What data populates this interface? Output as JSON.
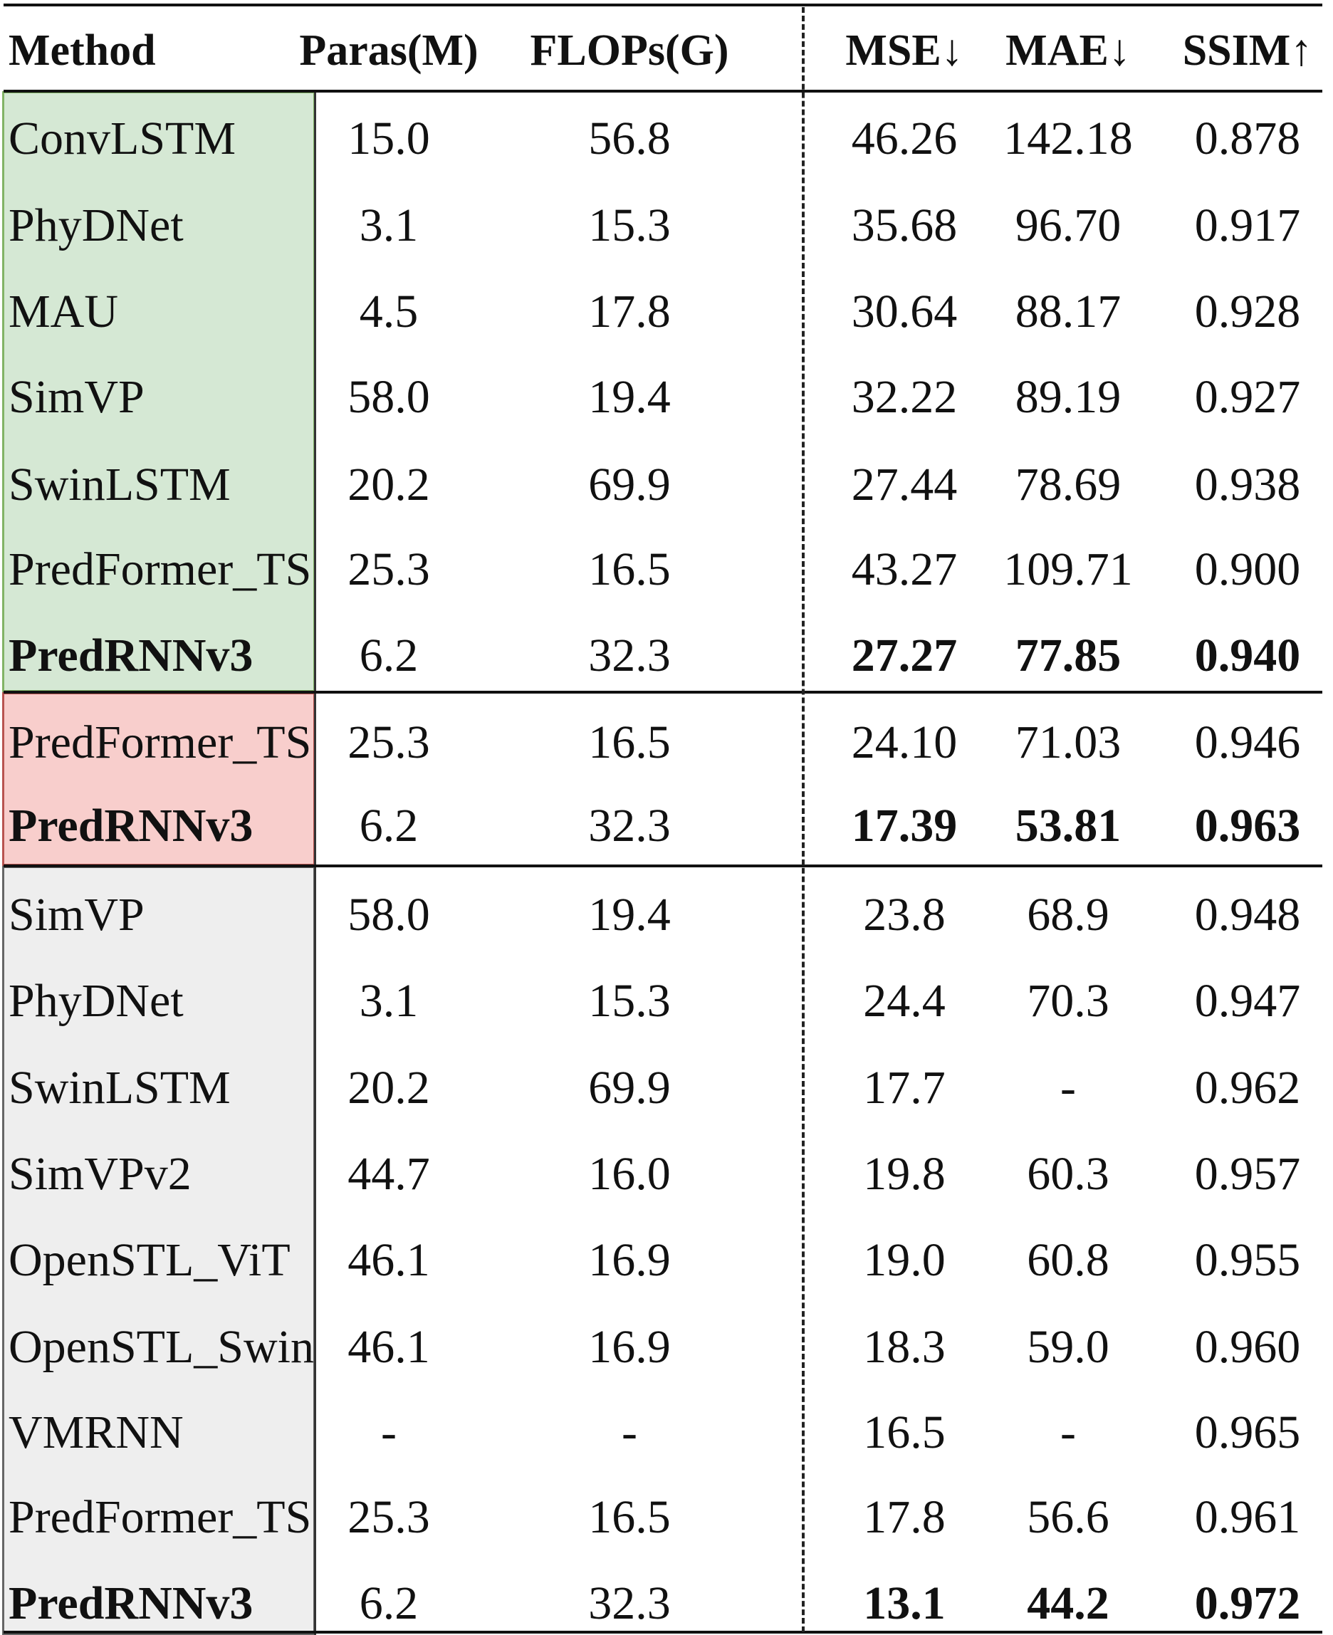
{
  "table": {
    "columns": [
      "Method",
      "Paras(M)",
      "FLOPs(G)",
      "MSE",
      "MAE",
      "SSIM"
    ],
    "arrows": {
      "MSE": "↓",
      "MAE": "↓",
      "SSIM": "↑"
    },
    "groups": [
      {
        "color": "#d5e8d4",
        "rows": [
          {
            "method": "ConvLSTM",
            "paras": "15.0",
            "flops": "56.8",
            "mse": "46.26",
            "mae": "142.18",
            "ssim": "0.878",
            "bold": false
          },
          {
            "method": "PhyDNet",
            "paras": "3.1",
            "flops": "15.3",
            "mse": "35.68",
            "mae": "96.70",
            "ssim": "0.917",
            "bold": false
          },
          {
            "method": "MAU",
            "paras": "4.5",
            "flops": "17.8",
            "mse": "30.64",
            "mae": "88.17",
            "ssim": "0.928",
            "bold": false
          },
          {
            "method": "SimVP",
            "paras": "58.0",
            "flops": "19.4",
            "mse": "32.22",
            "mae": "89.19",
            "ssim": "0.927",
            "bold": false
          },
          {
            "method": "SwinLSTM",
            "paras": "20.2",
            "flops": "69.9",
            "mse": "27.44",
            "mae": "78.69",
            "ssim": "0.938",
            "bold": false
          },
          {
            "method": "PredFormer_TS",
            "paras": "25.3",
            "flops": "16.5",
            "mse": "43.27",
            "mae": "109.71",
            "ssim": "0.900",
            "bold": false
          },
          {
            "method": "PredRNNv3",
            "paras": "6.2",
            "flops": "32.3",
            "mse": "27.27",
            "mae": "77.85",
            "ssim": "0.940",
            "bold": true
          }
        ]
      },
      {
        "color": "#f8cecc",
        "rows": [
          {
            "method": "PredFormer_TS",
            "paras": "25.3",
            "flops": "16.5",
            "mse": "24.10",
            "mae": "71.03",
            "ssim": "0.946",
            "bold": false
          },
          {
            "method": "PredRNNv3",
            "paras": "6.2",
            "flops": "32.3",
            "mse": "17.39",
            "mae": "53.81",
            "ssim": "0.963",
            "bold": true
          }
        ]
      },
      {
        "color": "#eeeeee",
        "rows": [
          {
            "method": "SimVP",
            "paras": "58.0",
            "flops": "19.4",
            "mse": "23.8",
            "mae": "68.9",
            "ssim": "0.948",
            "bold": false
          },
          {
            "method": "PhyDNet",
            "paras": "3.1",
            "flops": "15.3",
            "mse": "24.4",
            "mae": "70.3",
            "ssim": "0.947",
            "bold": false
          },
          {
            "method": "SwinLSTM",
            "paras": "20.2",
            "flops": "69.9",
            "mse": "17.7",
            "mae": "-",
            "ssim": "0.962",
            "bold": false
          },
          {
            "method": "SimVPv2",
            "paras": "44.7",
            "flops": "16.0",
            "mse": "19.8",
            "mae": "60.3",
            "ssim": "0.957",
            "bold": false
          },
          {
            "method": "OpenSTL_ViT",
            "paras": "46.1",
            "flops": "16.9",
            "mse": "19.0",
            "mae": "60.8",
            "ssim": "0.955",
            "bold": false
          },
          {
            "method": "OpenSTL_Swin",
            "paras": "46.1",
            "flops": "16.9",
            "mse": "18.3",
            "mae": "59.0",
            "ssim": "0.960",
            "bold": false
          },
          {
            "method": "VMRNN",
            "paras": "-",
            "flops": "-",
            "mse": "16.5",
            "mae": "-",
            "ssim": "0.965",
            "bold": false
          },
          {
            "method": "PredFormer_TS",
            "paras": "25.3",
            "flops": "16.5",
            "mse": "17.8",
            "mae": "56.6",
            "ssim": "0.961",
            "bold": false
          },
          {
            "method": "PredRNNv3",
            "paras": "6.2",
            "flops": "32.3",
            "mse": "13.1",
            "mae": "44.2",
            "ssim": "0.972",
            "bold": true
          }
        ]
      }
    ]
  }
}
